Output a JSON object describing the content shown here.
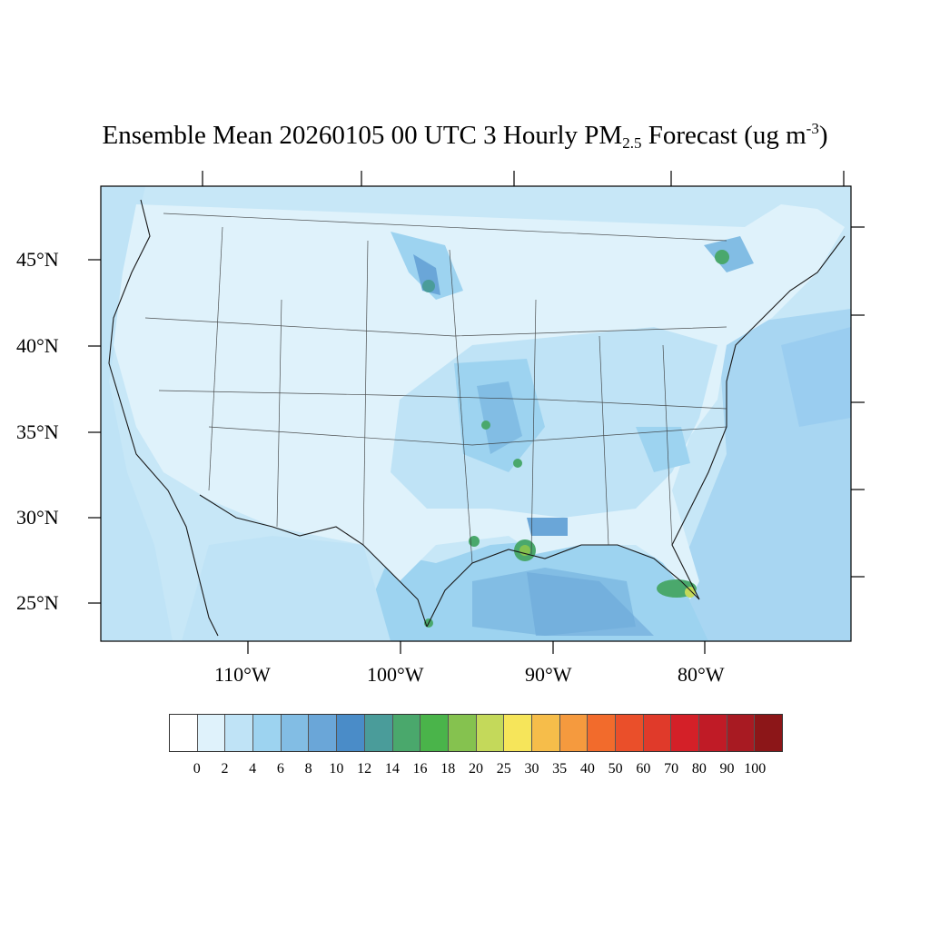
{
  "title": {
    "prefix": "Ensemble Mean 20260105 00 UTC 3 Hourly PM",
    "species_sub": "2.5",
    "mid": " Forecast (ug m",
    "unit_sup": "-3",
    "suffix": ")"
  },
  "map": {
    "lat_labels": [
      "45°N",
      "40°N",
      "35°N",
      "30°N",
      "25°N"
    ],
    "lon_labels": [
      "110°W",
      "100°W",
      "90°W",
      "80°W"
    ]
  },
  "colorbar": {
    "colors": [
      "#ffffff",
      "#dff2fb",
      "#bfe3f6",
      "#9dd3f0",
      "#82bde4",
      "#6aa6d8",
      "#4a8cc8",
      "#4a9c9a",
      "#4aa86c",
      "#4ab44a",
      "#85c24f",
      "#c4d95a",
      "#f6e55a",
      "#f6bd4a",
      "#f59a3e",
      "#f26b2c",
      "#ea4f2a",
      "#e03a2a",
      "#d42028",
      "#c01b26",
      "#a81a22",
      "#8c1618"
    ],
    "tick_labels": [
      "0",
      "2",
      "4",
      "6",
      "8",
      "10",
      "12",
      "14",
      "16",
      "18",
      "20",
      "25",
      "30",
      "35",
      "40",
      "50",
      "60",
      "70",
      "80",
      "90",
      "100"
    ]
  }
}
